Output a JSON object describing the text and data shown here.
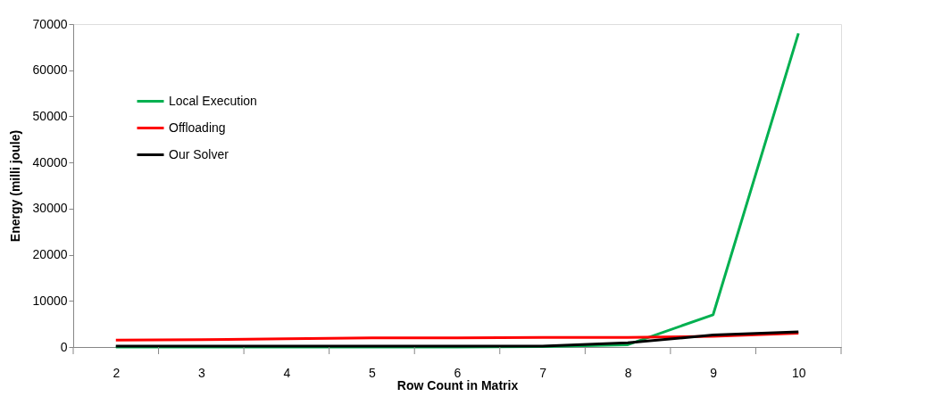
{
  "chart_data": {
    "type": "line",
    "xlabel": "Row Count in Matrix",
    "ylabel": "Energy (milli joule)",
    "categories": [
      "2",
      "3",
      "4",
      "5",
      "6",
      "7",
      "8",
      "9",
      "10"
    ],
    "series": [
      {
        "name": "Local Execution",
        "color": "#00b050",
        "values": [
          0,
          0,
          0,
          0,
          0,
          100,
          500,
          7000,
          68000
        ]
      },
      {
        "name": "Offloading",
        "color": "#ff0000",
        "values": [
          1500,
          1600,
          1800,
          2000,
          2000,
          2100,
          2100,
          2300,
          3000
        ]
      },
      {
        "name": "Our Solver",
        "color": "#000000",
        "values": [
          200,
          200,
          200,
          200,
          200,
          200,
          900,
          2600,
          3300
        ]
      }
    ],
    "ylim": [
      0,
      70000
    ],
    "yticks": [
      0,
      10000,
      20000,
      30000,
      40000,
      50000,
      60000,
      70000
    ],
    "grid": false,
    "legend": "top left",
    "marker": "none",
    "line_style": "solid"
  }
}
